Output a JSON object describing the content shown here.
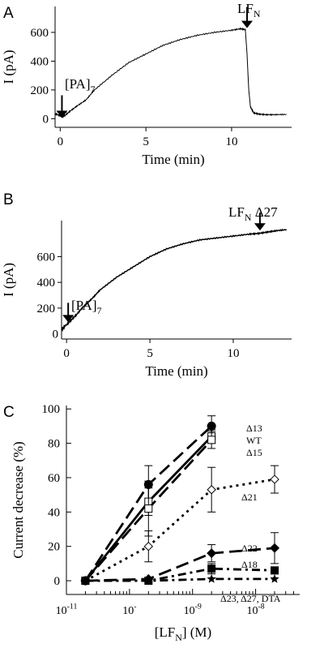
{
  "chart_data": [
    {
      "panel": "A",
      "type": "line",
      "xlabel": "Time (min)",
      "ylabel": "I (pA)",
      "x_ticks": [
        0,
        5,
        10
      ],
      "y_ticks": [
        0,
        200,
        400,
        600
      ],
      "xlim": [
        -0.3,
        13.5
      ],
      "ylim": [
        -60,
        780
      ],
      "annotations": [
        {
          "text": "[PA]",
          "sub": "7",
          "x": 0.1,
          "y": 5
        },
        {
          "text": "LF",
          "sub": "N",
          "x": 10.9,
          "y": 630
        }
      ],
      "series": [
        {
          "x": [
            -0.3,
            0,
            0.1,
            0.3,
            0.6,
            1,
            1.5,
            2,
            3,
            4,
            5,
            6,
            7,
            8,
            9,
            10,
            10.5,
            10.8,
            10.9,
            11,
            11.1,
            11.3,
            11.6,
            12,
            12.5,
            13.2
          ],
          "y": [
            35,
            20,
            10,
            25,
            55,
            90,
            130,
            200,
            300,
            390,
            450,
            510,
            550,
            580,
            600,
            615,
            625,
            620,
            450,
            200,
            80,
            40,
            32,
            28,
            28,
            30
          ]
        }
      ]
    },
    {
      "panel": "B",
      "type": "line",
      "xlabel": "Time (min)",
      "ylabel": "I (pA)",
      "x_ticks": [
        0,
        5,
        10
      ],
      "y_ticks": [
        200,
        400,
        600
      ],
      "y_extra_tick": "0",
      "xlim": [
        -0.3,
        13.5
      ],
      "ylim": [
        -40,
        880
      ],
      "annotations": [
        {
          "text": "[PA]",
          "sub": "7",
          "x": 0,
          "y": 90
        },
        {
          "text": "LF",
          "sub": "N",
          "suffix": " Δ27",
          "x": 11.6,
          "y": 790
        }
      ],
      "series": [
        {
          "x": [
            -0.3,
            -0.1,
            0,
            0.3,
            0.6,
            1,
            1.5,
            2,
            3,
            4,
            5,
            6,
            7,
            8,
            9,
            10,
            11,
            11.5,
            12,
            12.5,
            13.2
          ],
          "y": [
            30,
            60,
            70,
            110,
            150,
            210,
            270,
            340,
            440,
            520,
            600,
            660,
            700,
            730,
            745,
            760,
            775,
            780,
            790,
            800,
            810
          ]
        }
      ]
    },
    {
      "panel": "C",
      "type": "line",
      "xlabel": "[LF",
      "xlabel_sub": "N",
      "xlabel_suffix": "] (M)",
      "ylabel": "Current decrease (%)",
      "xscale": "log",
      "x_ticks": [
        "10-11",
        "10-10",
        "10-9",
        "10-8"
      ],
      "y_ticks": [
        0,
        20,
        40,
        60,
        80,
        100
      ],
      "xlim": [
        1e-11,
        5e-08
      ],
      "ylim": [
        -8,
        102
      ],
      "series": [
        {
          "name": "Δ13",
          "marker": "circle",
          "dash": "long",
          "x": [
            2e-11,
            2e-10,
            2e-09
          ],
          "y": [
            0,
            56,
            90
          ],
          "err": [
            0,
            11,
            6
          ]
        },
        {
          "name": "WT",
          "marker": "square-open",
          "dash": "solid",
          "x": [
            2e-11,
            2e-10,
            2e-09
          ],
          "y": [
            0,
            46,
            84
          ],
          "err": [
            0,
            8,
            4
          ]
        },
        {
          "name": "Δ15",
          "marker": "square-open",
          "dash": "long",
          "x": [
            2e-11,
            2e-10,
            2e-09
          ],
          "y": [
            0,
            42,
            82
          ],
          "err": [
            0,
            16,
            5
          ]
        },
        {
          "name": "Δ21",
          "marker": "diamond-open",
          "dash": "dotted",
          "x": [
            2e-11,
            2e-10,
            2e-09,
            2e-08
          ],
          "y": [
            0,
            20,
            53,
            59
          ],
          "err": [
            0,
            9,
            13,
            8
          ]
        },
        {
          "name": "Δ22",
          "marker": "diamond",
          "dash": "long",
          "x": [
            2e-11,
            2e-10,
            2e-09,
            2e-08
          ],
          "y": [
            0,
            1,
            16,
            19
          ],
          "err": [
            0,
            0,
            5,
            9
          ]
        },
        {
          "name": "Δ18",
          "marker": "square",
          "dash": "dashdot",
          "x": [
            2e-11,
            2e-10,
            2e-09,
            2e-08
          ],
          "y": [
            0,
            0,
            7,
            6
          ],
          "err": [
            0,
            0,
            3,
            2
          ]
        },
        {
          "name": "Δ23, Δ27, DTA",
          "marker": "star",
          "dash": "dashdot",
          "x": [
            2e-11,
            2e-10,
            2e-09,
            2e-08
          ],
          "y": [
            0,
            0,
            1,
            1
          ],
          "err": [
            0,
            0,
            0,
            0
          ]
        }
      ]
    }
  ],
  "panel_letters": [
    "A",
    "B",
    "C"
  ]
}
